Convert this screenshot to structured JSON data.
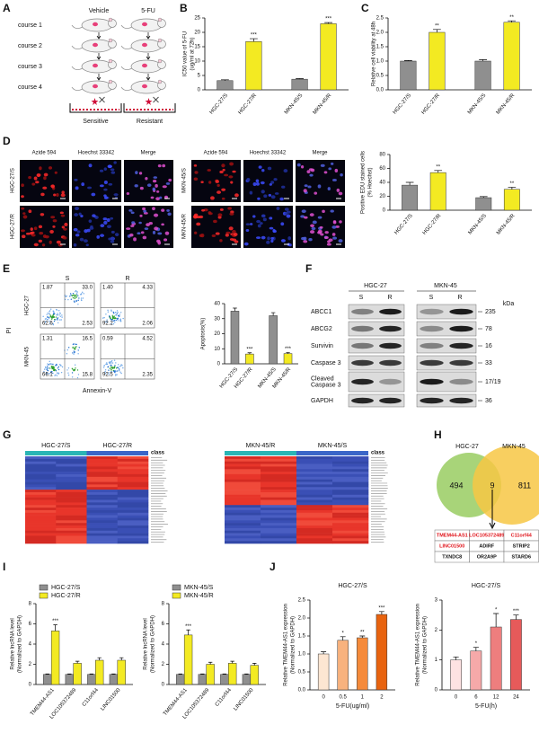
{
  "panels": [
    "A",
    "B",
    "C",
    "D",
    "E",
    "F",
    "G",
    "H",
    "I",
    "J"
  ],
  "panel_a": {
    "columns": [
      "Vehicle",
      "5-FU"
    ],
    "rows": [
      "course 1",
      "course 2",
      "course 3",
      "course 4"
    ],
    "outcomes": [
      "Sensitive",
      "Resistant"
    ]
  },
  "panel_d": {
    "channels": [
      "Azide 594",
      "Hoechst 33342",
      "Merge"
    ],
    "left_rows": [
      "HGC-27/S",
      "HGC-27/R"
    ],
    "right_rows": [
      "MKN-45/S",
      "MKN-45/R"
    ]
  },
  "panel_e": {
    "columns": [
      "S",
      "R"
    ],
    "rows": [
      "HGC-27",
      "MKN-45"
    ],
    "y_label": "PI",
    "x_label": "Annexin-V",
    "quadrants": [
      [
        [
          "1.87",
          "33.0",
          "62.6",
          "2.53"
        ],
        [
          "1.40",
          "4.33",
          "92.2",
          "2.06"
        ]
      ],
      [
        [
          "1.31",
          "16.5",
          "66.1",
          "15.8"
        ],
        [
          "0.59",
          "4.52",
          "92.5",
          "2.35"
        ]
      ]
    ]
  },
  "panel_f": {
    "cell_lines": [
      "HGC-27",
      "MKN-45"
    ],
    "lanes": [
      "S",
      "R"
    ],
    "unit": "kDa",
    "proteins": [
      {
        "name": [
          "ABCC1"
        ],
        "kda": "235"
      },
      {
        "name": [
          "ABCG2"
        ],
        "kda": "78"
      },
      {
        "name": [
          "Survivin"
        ],
        "kda": "16"
      },
      {
        "name": [
          "Caspase 3"
        ],
        "kda": "33"
      },
      {
        "name": [
          "Cleaved",
          "Caspase 3"
        ],
        "kda": "17/19"
      },
      {
        "name": [
          "GAPDH"
        ],
        "kda": "36"
      }
    ]
  },
  "panel_g": {
    "left_groups": [
      "HGC-27/S",
      "HGC-27/R"
    ],
    "right_groups": [
      "MKN-45/R",
      "MKN-45/S"
    ],
    "legend": "class"
  },
  "panel_h": {
    "sets": [
      "HGC-27",
      "MKN-45"
    ],
    "counts": [
      "494",
      "9",
      "811"
    ],
    "table": [
      [
        {
          "text": "TMEM44-AS1",
          "color": "#e0141b"
        },
        {
          "text": "LOC105372489",
          "color": "#e0141b"
        },
        {
          "text": "C11orf44",
          "color": "#e0141b"
        }
      ],
      [
        {
          "text": "LINC01500",
          "color": "#e0141b"
        },
        {
          "text": "ADIRF",
          "color": "#111111"
        },
        {
          "text": "STRIP2",
          "color": "#111111"
        }
      ],
      [
        {
          "text": "TXNDC8",
          "color": "#111111"
        },
        {
          "text": "OR2A9P",
          "color": "#111111"
        },
        {
          "text": "STARD6",
          "color": "#111111"
        }
      ]
    ]
  },
  "chart_data": [
    {
      "type": "bar",
      "ylabel": [
        "IC50 value of 5-FU",
        "(ug/ml at 72h)"
      ],
      "categories": [
        "HGC-27/S",
        "HGC-27/R",
        "MKN-45/S",
        "MKN-45/R"
      ],
      "values": [
        3.2,
        16.8,
        3.7,
        23
      ],
      "errors": [
        0.3,
        1.0,
        0.2,
        0.4
      ],
      "annotations": [
        null,
        "***",
        null,
        "***"
      ],
      "colors": [
        "#8f8f8f",
        "#f3ea22",
        "#8f8f8f",
        "#f3ea22"
      ],
      "ylim": [
        0,
        25
      ],
      "yticks": [
        0,
        5,
        10,
        15,
        20,
        25
      ]
    },
    {
      "type": "bar",
      "ylabel": [
        "Relative cell viability at 48h"
      ],
      "categories": [
        "HGC-27/S",
        "HGC-27/R",
        "MKN-45/S",
        "MKN-45/R"
      ],
      "values": [
        1.0,
        2.0,
        1.0,
        2.35
      ],
      "errors": [
        0.02,
        0.1,
        0.05,
        0.05
      ],
      "annotations": [
        null,
        "**",
        null,
        "**"
      ],
      "colors": [
        "#8f8f8f",
        "#f3ea22",
        "#8f8f8f",
        "#f3ea22"
      ],
      "ylim": [
        0,
        2.5
      ],
      "yticks": [
        {
          "value": 0,
          "label": "0.0"
        },
        0.5,
        {
          "value": 1,
          "label": "1.0"
        },
        1.5,
        {
          "value": 2,
          "label": "2.0"
        },
        2.5
      ]
    },
    {
      "type": "bar",
      "ylabel": [
        "Positive EDU stained cells",
        "(% Hoechst)"
      ],
      "categories": [
        "HGC-27/S",
        "HGC-27/R",
        "MKN-45/S",
        "MKN-45/R"
      ],
      "values": [
        36,
        54,
        18,
        30
      ],
      "errors": [
        4,
        3,
        1.5,
        3
      ],
      "annotations": [
        null,
        "**",
        null,
        "**"
      ],
      "colors": [
        "#8f8f8f",
        "#f3ea22",
        "#8f8f8f",
        "#f3ea22"
      ],
      "ylim": [
        0,
        80
      ],
      "yticks": [
        0,
        20,
        40,
        60,
        80
      ]
    },
    {
      "type": "bar",
      "ylabel": [
        "Apoptosis(%)"
      ],
      "categories": [
        "HGC-27/S",
        "HGC-27/R",
        "MKN-45/S",
        "MKN-45/R"
      ],
      "values": [
        35,
        6.5,
        32,
        6.8
      ],
      "errors": [
        2,
        0.8,
        2,
        0.7
      ],
      "annotations": [
        null,
        "***",
        null,
        "***"
      ],
      "colors": [
        "#8f8f8f",
        "#f3ea22",
        "#8f8f8f",
        "#f3ea22"
      ],
      "ylim": [
        0,
        40
      ],
      "yticks": [
        0,
        10,
        20,
        30,
        40
      ]
    },
    {
      "type": "bar",
      "ylabel": [
        "Relative lncRNA level",
        "(Normalized to GAPDH)"
      ],
      "categories": [
        "TMEM44-AS1",
        "LOC105372489",
        "C11orf44",
        "LINC01500"
      ],
      "series": [
        {
          "name": "HGC-27/S",
          "color": "#8f8f8f",
          "values": [
            1,
            1,
            1,
            1
          ],
          "errors": [
            0.05,
            0.05,
            0.05,
            0.05
          ]
        },
        {
          "name": "HGC-27/R",
          "color": "#f3ea22",
          "values": [
            5.3,
            2.1,
            2.4,
            2.4
          ],
          "errors": [
            0.6,
            0.2,
            0.25,
            0.25
          ],
          "annotations": [
            "***",
            null,
            null,
            null
          ]
        }
      ],
      "ylim": [
        0,
        8
      ],
      "yticks": [
        0,
        2,
        4,
        6,
        8
      ]
    },
    {
      "type": "bar",
      "ylabel": [
        "Relative lncRNA level",
        "(Normalized to GAPDH)"
      ],
      "categories": [
        "TMEM44-AS1",
        "LOC105372489",
        "C11orf44",
        "LINC01500"
      ],
      "series": [
        {
          "name": "MKN-45/S",
          "color": "#8f8f8f",
          "values": [
            1,
            1,
            1,
            1
          ],
          "errors": [
            0.05,
            0.05,
            0.05,
            0.05
          ]
        },
        {
          "name": "MKN-45/R",
          "color": "#f3ea22",
          "values": [
            4.9,
            2.0,
            2.1,
            1.9
          ],
          "errors": [
            0.5,
            0.2,
            0.2,
            0.2
          ],
          "annotations": [
            "***",
            null,
            null,
            null
          ]
        }
      ],
      "ylim": [
        0,
        8
      ],
      "yticks": [
        0,
        2,
        4,
        6,
        8
      ]
    },
    {
      "type": "bar",
      "title": "HGC-27/S",
      "ylabel": [
        "Relative TMEM44-AS1 expression",
        "(Normalized to GAPDH)"
      ],
      "xlabel": "5-FU(ug/ml)",
      "categories": [
        "0",
        "0.5",
        "1",
        "2"
      ],
      "values": [
        1.0,
        1.38,
        1.45,
        2.1
      ],
      "errors": [
        0.06,
        0.1,
        0.05,
        0.08
      ],
      "annotations": [
        null,
        "*",
        "**",
        "***"
      ],
      "colors": [
        "#fde6d2",
        "#f8b27e",
        "#f58a3a",
        "#e8630f"
      ],
      "ylim": [
        0,
        2.5
      ],
      "yticks": [
        {
          "value": 0,
          "label": "0.0"
        },
        0.5,
        {
          "value": 1,
          "label": "1.0"
        },
        1.5,
        {
          "value": 2,
          "label": "2.0"
        },
        2.5
      ]
    },
    {
      "type": "bar",
      "title": "HGC-27/S",
      "ylabel": [
        "Relative TMEM44-AS1 expression",
        "(Normalized to GAPDH)"
      ],
      "xlabel": "5-FU(h)",
      "categories": [
        "0",
        "6",
        "12",
        "24"
      ],
      "values": [
        1.0,
        1.3,
        2.1,
        2.35
      ],
      "errors": [
        0.1,
        0.12,
        0.45,
        0.15
      ],
      "annotations": [
        null,
        "*",
        "*",
        "***"
      ],
      "colors": [
        "#fde2e2",
        "#f6a9a9",
        "#ee7e7e",
        "#e65a5a"
      ],
      "ylim": [
        0,
        3
      ],
      "yticks": [
        0,
        1,
        2,
        3
      ]
    }
  ]
}
